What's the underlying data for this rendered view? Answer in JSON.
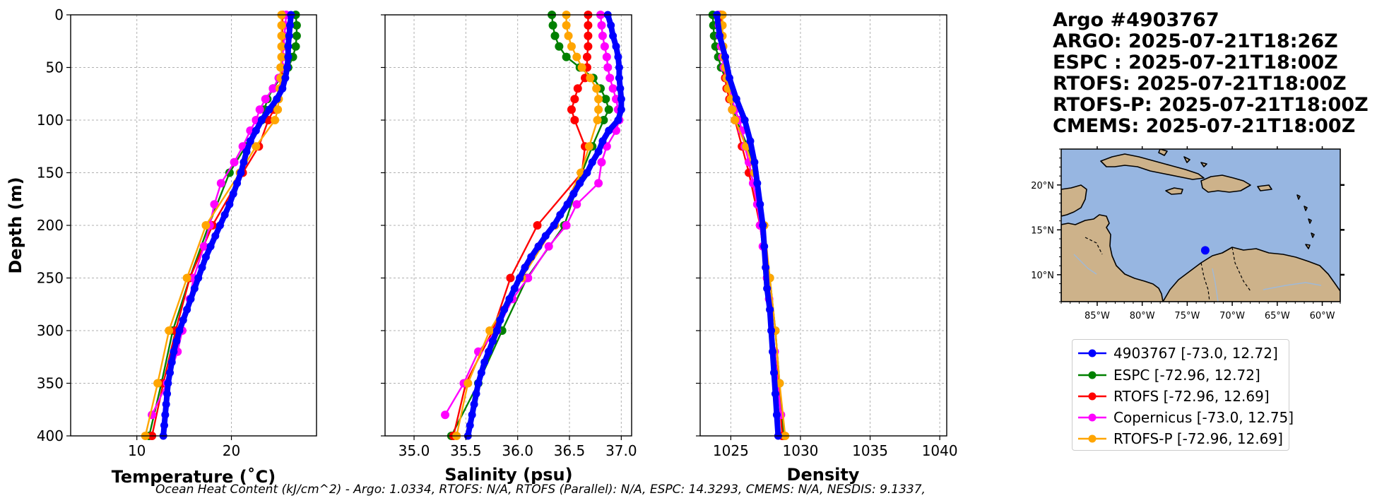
{
  "title_lines": [
    "Argo #4903767",
    "ARGO: 2025-07-21T18:26Z",
    "ESPC : 2025-07-21T18:00Z",
    "RTOFS: 2025-07-21T18:00Z",
    "RTOFS-P: 2025-07-21T18:00Z",
    "CMEMS: 2025-07-21T18:00Z"
  ],
  "footer": "Ocean Heat Content (kJ/cm^2) - Argo: 1.0334,  RTOFS: N/A,  RTOFS (Parallel): N/A,  ESPC: 14.3293,  CMEMS: N/A,  NESDIS: 9.1337,",
  "legend": [
    {
      "label": "4903767 [-73.0, 12.72]",
      "color": "#0000ff"
    },
    {
      "label": "ESPC [-72.96, 12.72]",
      "color": "#008000"
    },
    {
      "label": "RTOFS [-72.96, 12.69]",
      "color": "#ff0000"
    },
    {
      "label": "Copernicus [-73.0, 12.75]",
      "color": "#ff00ff"
    },
    {
      "label": "RTOFS-P [-72.96, 12.69]",
      "color": "#ffa500"
    }
  ],
  "chart_data": [
    {
      "type": "line",
      "xlabel": "Temperature (˚C)",
      "ylabel": "Depth (m)",
      "xlim": [
        3,
        29
      ],
      "ylim": [
        400,
        0
      ],
      "xticks": [
        10,
        20
      ],
      "yticks": [
        0,
        50,
        100,
        150,
        200,
        250,
        300,
        350,
        400
      ],
      "grid": true,
      "series": [
        {
          "name": "Argo",
          "color": "#0000ff",
          "depth": [
            0,
            10,
            20,
            30,
            40,
            50,
            60,
            70,
            80,
            90,
            100,
            110,
            120,
            130,
            140,
            150,
            160,
            170,
            180,
            190,
            200,
            210,
            220,
            230,
            240,
            250,
            260,
            270,
            280,
            290,
            300,
            310,
            320,
            330,
            340,
            350,
            360,
            370,
            380,
            390,
            400
          ],
          "values": [
            26.3,
            26.2,
            26.1,
            26.0,
            26.0,
            25.9,
            25.7,
            25.4,
            24.8,
            24.0,
            23.2,
            22.6,
            22.0,
            21.6,
            21.3,
            21.0,
            20.6,
            20.2,
            19.8,
            19.3,
            18.8,
            18.3,
            17.8,
            17.3,
            16.9,
            16.5,
            16.1,
            15.7,
            15.3,
            14.9,
            14.5,
            14.2,
            13.9,
            13.7,
            13.5,
            13.3,
            13.2,
            13.1,
            13.0,
            12.9,
            12.8
          ]
        },
        {
          "name": "ESPC",
          "color": "#008000",
          "depth": [
            0,
            10,
            20,
            30,
            40,
            50,
            60,
            70,
            80,
            90,
            100,
            125,
            150,
            200,
            250,
            300,
            350,
            400
          ],
          "values": [
            26.8,
            26.9,
            26.9,
            26.8,
            26.5,
            26.0,
            25.2,
            24.4,
            23.8,
            23.5,
            23.2,
            21.5,
            19.8,
            17.6,
            15.6,
            13.8,
            12.6,
            11.3
          ]
        },
        {
          "name": "RTOFS",
          "color": "#ff0000",
          "depth": [
            0,
            10,
            20,
            30,
            40,
            50,
            60,
            70,
            80,
            90,
            100,
            125,
            150,
            200,
            250,
            300,
            350,
            400
          ],
          "values": [
            25.4,
            25.4,
            25.4,
            25.4,
            25.4,
            25.4,
            25.3,
            25.2,
            24.9,
            24.5,
            23.9,
            22.9,
            21.2,
            18.0,
            15.6,
            14.1,
            12.8,
            11.6
          ]
        },
        {
          "name": "Copernicus",
          "color": "#ff00ff",
          "depth": [
            0,
            10,
            20,
            30,
            40,
            50,
            60,
            70,
            80,
            90,
            100,
            110,
            125,
            140,
            160,
            180,
            200,
            220,
            250,
            270,
            300,
            320,
            350,
            380
          ],
          "values": [
            25.8,
            25.7,
            25.6,
            25.5,
            25.4,
            25.4,
            25.0,
            24.4,
            23.6,
            23.0,
            22.6,
            22.0,
            21.2,
            20.3,
            18.9,
            18.2,
            17.7,
            17.1,
            16.0,
            15.6,
            14.8,
            14.3,
            13.2,
            11.6
          ]
        },
        {
          "name": "RTOFS-P",
          "color": "#ffa500",
          "depth": [
            0,
            10,
            20,
            30,
            40,
            50,
            60,
            70,
            80,
            90,
            100,
            125,
            150,
            200,
            250,
            300,
            350,
            400
          ],
          "values": [
            25.3,
            25.3,
            25.3,
            25.3,
            25.3,
            25.2,
            25.2,
            25.1,
            25.0,
            24.9,
            24.6,
            22.6,
            20.9,
            17.3,
            15.3,
            13.4,
            12.2,
            10.9
          ]
        }
      ]
    },
    {
      "type": "line",
      "xlabel": "Salinity (psu)",
      "ylabel": "",
      "xlim": [
        34.72,
        37.1
      ],
      "ylim": [
        400,
        0
      ],
      "xticks": [
        35.0,
        35.5,
        36.0,
        36.5,
        37.0
      ],
      "xticklabels": [
        "35.0",
        "35.5",
        "36.0",
        "36.5",
        "37.0"
      ],
      "grid": true,
      "series": [
        {
          "name": "Argo",
          "color": "#0000ff",
          "depth": [
            0,
            10,
            20,
            30,
            40,
            50,
            60,
            70,
            80,
            90,
            100,
            110,
            120,
            130,
            140,
            150,
            160,
            170,
            180,
            190,
            200,
            210,
            220,
            230,
            240,
            250,
            260,
            270,
            280,
            290,
            300,
            310,
            320,
            330,
            340,
            350,
            360,
            370,
            380,
            390,
            400
          ],
          "values": [
            36.87,
            36.9,
            36.92,
            36.95,
            36.97,
            36.98,
            36.98,
            36.99,
            37.0,
            37.0,
            36.97,
            36.88,
            36.82,
            36.78,
            36.72,
            36.67,
            36.6,
            36.54,
            36.48,
            36.41,
            36.35,
            36.27,
            36.2,
            36.13,
            36.07,
            36.02,
            35.97,
            35.92,
            35.87,
            35.83,
            35.8,
            35.76,
            35.72,
            35.68,
            35.65,
            35.62,
            35.6,
            35.58,
            35.56,
            35.54,
            35.52
          ]
        },
        {
          "name": "ESPC",
          "color": "#008000",
          "depth": [
            0,
            10,
            20,
            30,
            40,
            50,
            60,
            70,
            80,
            90,
            100,
            125,
            150,
            200,
            250,
            300,
            350,
            400
          ],
          "values": [
            36.33,
            36.34,
            36.36,
            36.4,
            36.47,
            36.6,
            36.73,
            36.8,
            36.85,
            36.88,
            36.83,
            36.72,
            36.62,
            36.45,
            36.09,
            35.85,
            35.62,
            35.36
          ]
        },
        {
          "name": "RTOFS",
          "color": "#ff0000",
          "depth": [
            0,
            10,
            20,
            30,
            40,
            50,
            60,
            70,
            80,
            90,
            100,
            125,
            150,
            200,
            250,
            300,
            350,
            400
          ],
          "values": [
            36.68,
            36.68,
            36.68,
            36.68,
            36.67,
            36.67,
            36.65,
            36.58,
            36.55,
            36.52,
            36.55,
            36.65,
            36.62,
            36.19,
            35.93,
            35.76,
            35.5,
            35.38
          ]
        },
        {
          "name": "Copernicus",
          "color": "#ff00ff",
          "depth": [
            0,
            10,
            20,
            30,
            40,
            50,
            60,
            70,
            80,
            90,
            100,
            110,
            125,
            140,
            160,
            180,
            200,
            220,
            250,
            270,
            300,
            320,
            350,
            380
          ],
          "values": [
            36.8,
            36.81,
            36.82,
            36.84,
            36.86,
            36.87,
            36.89,
            36.92,
            36.95,
            36.97,
            36.98,
            36.95,
            36.86,
            36.81,
            36.78,
            36.57,
            36.47,
            36.3,
            36.1,
            35.95,
            35.8,
            35.62,
            35.48,
            35.3
          ]
        },
        {
          "name": "RTOFS-P",
          "color": "#ffa500",
          "depth": [
            0,
            10,
            20,
            30,
            40,
            50,
            60,
            70,
            80,
            90,
            100,
            125,
            150,
            200,
            250,
            300,
            350,
            400
          ],
          "values": [
            36.47,
            36.47,
            36.49,
            36.52,
            36.57,
            36.62,
            36.7,
            36.76,
            36.78,
            36.78,
            36.77,
            36.69,
            36.61,
            36.36,
            36.04,
            35.73,
            35.52,
            35.41
          ]
        }
      ]
    },
    {
      "type": "line",
      "xlabel": "Density",
      "ylabel": "",
      "xlim": [
        1022.8,
        1040.5
      ],
      "ylim": [
        400,
        0
      ],
      "xticks": [
        1025,
        1030,
        1035,
        1040
      ],
      "grid": true,
      "series": [
        {
          "name": "Argo",
          "color": "#0000ff",
          "depth": [
            0,
            20,
            40,
            60,
            80,
            100,
            120,
            140,
            160,
            180,
            200,
            220,
            240,
            260,
            280,
            300,
            320,
            340,
            360,
            380,
            400
          ],
          "values": [
            1024.0,
            1024.2,
            1024.6,
            1024.9,
            1025.4,
            1026.0,
            1026.4,
            1026.7,
            1026.9,
            1027.1,
            1027.3,
            1027.4,
            1027.5,
            1027.6,
            1027.8,
            1027.9,
            1028.0,
            1028.1,
            1028.2,
            1028.3,
            1028.4
          ]
        },
        {
          "name": "ESPC",
          "color": "#008000",
          "depth": [
            0,
            10,
            20,
            30,
            40,
            50,
            60,
            70,
            80,
            90,
            100,
            125,
            150,
            200,
            250,
            300,
            350,
            400
          ],
          "values": [
            1023.7,
            1023.75,
            1023.8,
            1023.9,
            1024.1,
            1024.3,
            1024.6,
            1024.8,
            1025.0,
            1025.2,
            1025.4,
            1026.2,
            1026.7,
            1027.3,
            1027.8,
            1028.2,
            1028.5,
            1028.8
          ]
        },
        {
          "name": "RTOFS",
          "color": "#ff0000",
          "depth": [
            0,
            10,
            20,
            30,
            40,
            50,
            60,
            70,
            80,
            90,
            100,
            125,
            150,
            200,
            250,
            300,
            350,
            400
          ],
          "values": [
            1024.3,
            1024.3,
            1024.3,
            1024.35,
            1024.4,
            1024.5,
            1024.6,
            1024.7,
            1024.9,
            1025.1,
            1025.3,
            1025.8,
            1026.3,
            1027.1,
            1027.6,
            1028.0,
            1028.4,
            1028.7
          ]
        },
        {
          "name": "Copernicus",
          "color": "#ff00ff",
          "depth": [
            0,
            10,
            20,
            30,
            40,
            50,
            60,
            70,
            80,
            90,
            100,
            110,
            125,
            140,
            160,
            180,
            200,
            220,
            250,
            270,
            300,
            320,
            350,
            380
          ],
          "values": [
            1024.1,
            1024.15,
            1024.2,
            1024.3,
            1024.4,
            1024.5,
            1024.7,
            1024.9,
            1025.1,
            1025.3,
            1025.6,
            1025.8,
            1026.0,
            1026.3,
            1026.6,
            1026.9,
            1027.1,
            1027.3,
            1027.6,
            1027.75,
            1028.0,
            1028.15,
            1028.35,
            1028.6
          ]
        },
        {
          "name": "RTOFS-P",
          "color": "#ffa500",
          "depth": [
            0,
            10,
            20,
            30,
            40,
            50,
            60,
            70,
            80,
            90,
            100,
            125,
            150,
            200,
            250,
            300,
            350,
            400
          ],
          "values": [
            1024.4,
            1024.4,
            1024.4,
            1024.45,
            1024.5,
            1024.6,
            1024.7,
            1024.8,
            1025.0,
            1025.1,
            1025.3,
            1026.1,
            1026.7,
            1027.4,
            1027.8,
            1028.2,
            1028.5,
            1028.9
          ]
        }
      ]
    }
  ],
  "map": {
    "lon_ticks": [
      "85°W",
      "80°W",
      "75°W",
      "70°W",
      "65°W",
      "60°W"
    ],
    "lon_values": [
      -85,
      -80,
      -75,
      -70,
      -65,
      -60
    ],
    "lat_ticks": [
      "20°N",
      "15°N",
      "10°N"
    ],
    "lat_values": [
      20,
      15,
      10
    ],
    "lon_range": [
      -89,
      -58
    ],
    "lat_range": [
      7,
      24
    ],
    "float_lon": -73.0,
    "float_lat": 12.72,
    "ocean_color": "#97b6e1",
    "land_color": "#cdb28a"
  }
}
